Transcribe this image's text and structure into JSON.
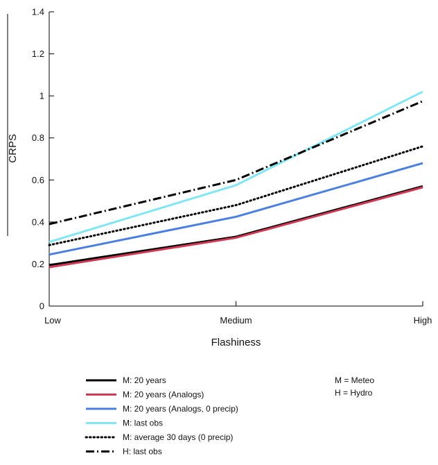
{
  "chart_data": {
    "type": "line",
    "title": "",
    "xlabel": "Flashiness",
    "ylabel": "CRPS",
    "categories": [
      "Low",
      "Medium",
      "High"
    ],
    "ylim": [
      0,
      1.4
    ],
    "yticks": [
      "0",
      "0.2",
      "0.4",
      "0.6",
      "0.8",
      "1",
      "1.2",
      "1.4"
    ],
    "grid": false,
    "legend_position": "bottom",
    "series": [
      {
        "name": "M: 20 years",
        "values": [
          0.195,
          0.33,
          0.57
        ],
        "color": "#000000",
        "style": "solid"
      },
      {
        "name": "M: 20 years (Analogs)",
        "values": [
          0.185,
          0.325,
          0.565
        ],
        "color": "#d03a55",
        "style": "solid"
      },
      {
        "name": "M: 20 years (Analogs, 0 precip)",
        "values": [
          0.245,
          0.425,
          0.68
        ],
        "color": "#4a7fe0",
        "style": "solid"
      },
      {
        "name": "M: last obs",
        "values": [
          0.305,
          0.575,
          1.02
        ],
        "color": "#7fe6f2",
        "style": "solid"
      },
      {
        "name": "M: average 30 days (0 precip)",
        "values": [
          0.29,
          0.48,
          0.76
        ],
        "color": "#000000",
        "style": "dotted"
      },
      {
        "name": "H: last obs",
        "values": [
          0.39,
          0.6,
          0.975
        ],
        "color": "#000000",
        "style": "dashdot"
      }
    ],
    "notes": [
      "M = Meteo",
      "H = Hydro"
    ]
  }
}
